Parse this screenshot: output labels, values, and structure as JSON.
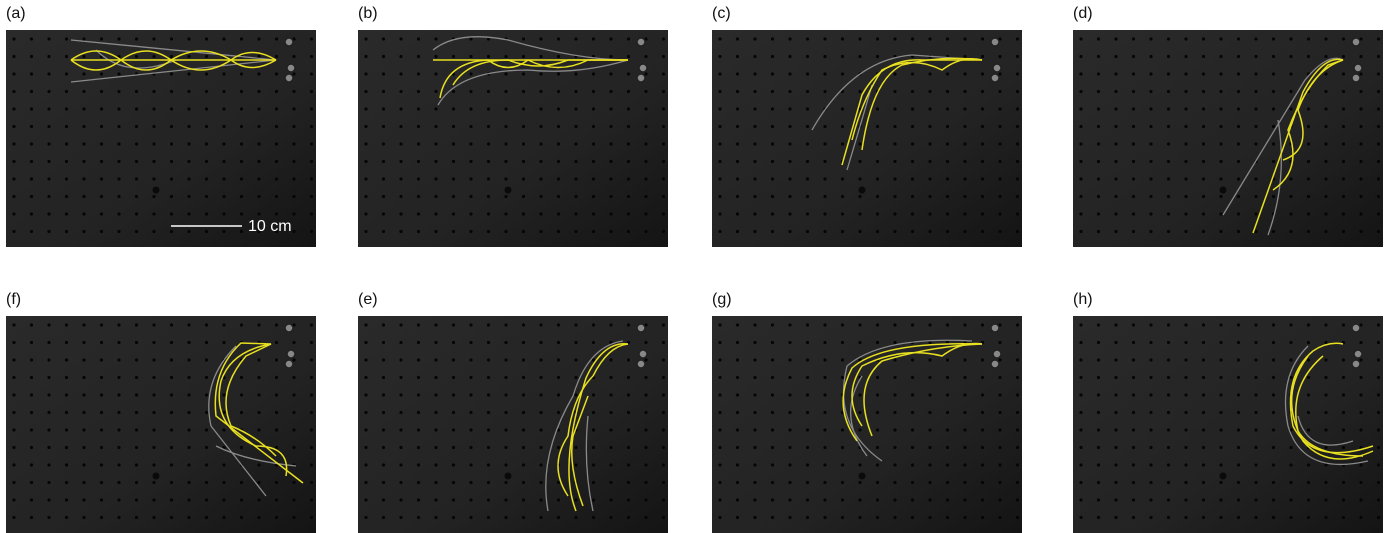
{
  "panels": [
    {
      "label": "(a)"
    },
    {
      "label": "(b)"
    },
    {
      "label": "(c)"
    },
    {
      "label": "(d)"
    },
    {
      "label": "(f)"
    },
    {
      "label": "(e)"
    },
    {
      "label": "(g)"
    },
    {
      "label": "(h)"
    }
  ],
  "scale_bar": {
    "label": "10 cm"
  }
}
